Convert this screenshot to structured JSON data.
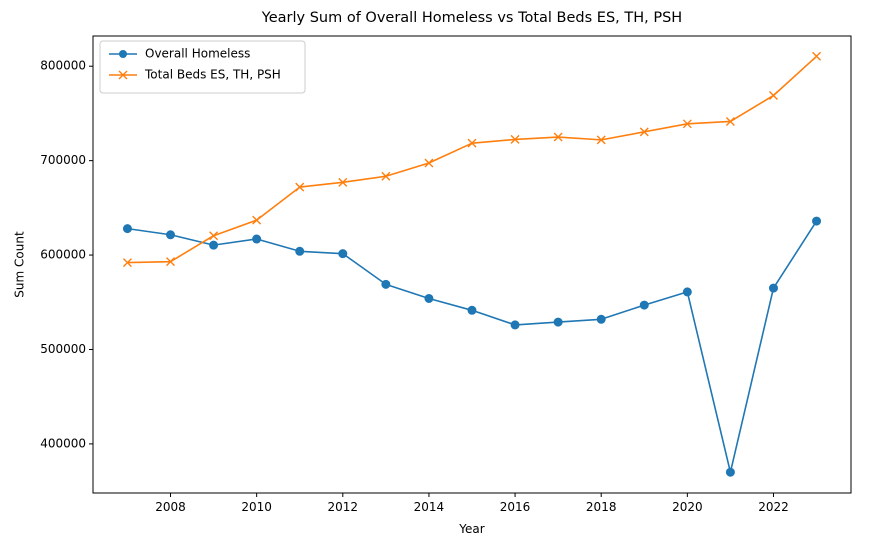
{
  "chart_data": {
    "type": "line",
    "title": "Yearly Sum of Overall Homeless vs Total Beds ES, TH, PSH",
    "xlabel": "Year",
    "ylabel": "Sum Count",
    "x": [
      2007,
      2008,
      2009,
      2010,
      2011,
      2012,
      2013,
      2014,
      2015,
      2016,
      2017,
      2018,
      2019,
      2020,
      2021,
      2022,
      2023
    ],
    "xlim": [
      2006.2,
      2023.8
    ],
    "ylim": [
      348000,
      832000
    ],
    "xticks": [
      2008,
      2010,
      2012,
      2014,
      2016,
      2018,
      2020,
      2022
    ],
    "yticks": [
      400000,
      500000,
      600000,
      700000,
      800000
    ],
    "grid": false,
    "legend_position": "top-left",
    "series": [
      {
        "name": "Overall Homeless",
        "marker": "circle",
        "color": "#1f77b4",
        "values": [
          628000,
          621500,
          610500,
          617000,
          604000,
          601500,
          569000,
          554000,
          541500,
          526000,
          529000,
          532000,
          547000,
          561000,
          370000,
          565000,
          636000
        ]
      },
      {
        "name": "Total Beds ES, TH, PSH",
        "marker": "x",
        "color": "#ff7f0e",
        "values": [
          592000,
          593000,
          620500,
          637000,
          672000,
          677000,
          683500,
          697500,
          718500,
          722500,
          725000,
          722000,
          730500,
          739000,
          741500,
          769000,
          810500
        ]
      }
    ]
  }
}
